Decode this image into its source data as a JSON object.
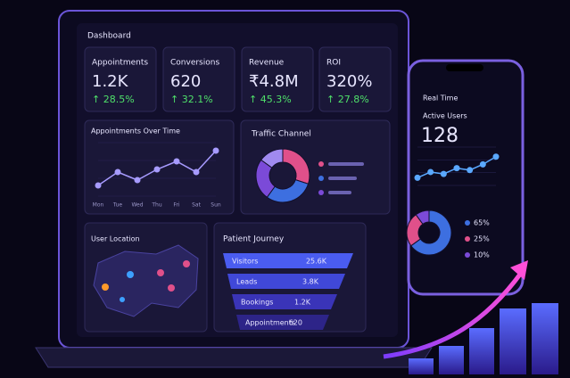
{
  "dashboard": {
    "title": "Dashboard",
    "kpis": [
      {
        "label": "Appointments",
        "value": "1.2K",
        "change": "↑ 28.5%"
      },
      {
        "label": "Conversions",
        "value": "620",
        "change": "↑ 32.1%"
      },
      {
        "label": "Revenue",
        "value": "₹4.8M",
        "change": "↑ 45.3%"
      },
      {
        "label": "ROI",
        "value": "320%",
        "change": "↑ 27.8%"
      }
    ],
    "appointments_chart": {
      "type": "line",
      "title": "Appointments Over Time",
      "categories": [
        "Mon",
        "Tue",
        "Wed",
        "Thu",
        "Fri",
        "Sat",
        "Sun"
      ],
      "values": [
        20,
        45,
        30,
        50,
        65,
        45,
        85
      ],
      "ylim": [
        0,
        100
      ],
      "color": "#a79bff"
    },
    "traffic_chart": {
      "type": "pie",
      "title": "Traffic Channel",
      "values": [
        30,
        30,
        25,
        15
      ],
      "colors": [
        "#e0508a",
        "#3d6fe0",
        "#7b4ad8",
        "#a08af0"
      ]
    },
    "location": {
      "title": "User Location"
    },
    "journey": {
      "title": "Patient Journey",
      "stages": [
        {
          "label": "Visitors",
          "value": "25.6K"
        },
        {
          "label": "Leads",
          "value": "3.8K"
        },
        {
          "label": "Bookings",
          "value": "1.2K"
        },
        {
          "label": "Appointments",
          "value": "620"
        }
      ]
    }
  },
  "phone": {
    "title": "Real Time",
    "metric_label": "Active Users",
    "metric_value": "128",
    "trend": {
      "type": "line",
      "values": [
        20,
        35,
        30,
        45,
        40,
        55,
        75
      ],
      "ylim": [
        0,
        100
      ],
      "color": "#5aa8ff"
    },
    "donut": {
      "type": "pie",
      "values": [
        65,
        25,
        10
      ],
      "value_labels": [
        "65%",
        "25%",
        "10%"
      ],
      "colors": [
        "#3d6fe0",
        "#e0508a",
        "#7b4ad8"
      ]
    }
  }
}
